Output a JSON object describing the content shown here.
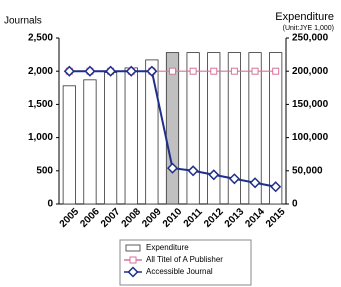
{
  "chart_data": {
    "type": "bar-line",
    "y_label": "Journals",
    "y2_label": "Expenditure",
    "y2_unit": "(Unit:JYE 1,000)",
    "categories": [
      "2005",
      "2006",
      "2007",
      "2008",
      "2009",
      "2010",
      "2011",
      "2012",
      "2013",
      "2014",
      "2015"
    ],
    "series": [
      {
        "name": "Expenditure",
        "type": "bar",
        "axis": "y2",
        "color": "#ffffff",
        "colors": [
          "#ffffff",
          "#ffffff",
          "#ffffff",
          "#ffffff",
          "#ffffff",
          "#c0c0c0",
          "#ffffff",
          "#ffffff",
          "#ffffff",
          "#ffffff",
          "#ffffff"
        ],
        "values": [
          178000,
          187000,
          198000,
          205000,
          217000,
          228000,
          228000,
          228000,
          228000,
          228000,
          228000
        ]
      },
      {
        "name": "All Titel of A Publisher",
        "type": "line",
        "marker": "square",
        "color": "#d9739a",
        "values": [
          2000,
          2000,
          2000,
          2000,
          2000,
          2000,
          2000,
          2000,
          2000,
          2000,
          2000
        ]
      },
      {
        "name": "Accessible Journal",
        "type": "line",
        "marker": "diamond",
        "color": "#1f2f8a",
        "values": [
          2000,
          2000,
          2000,
          2000,
          2000,
          540,
          500,
          440,
          380,
          320,
          260
        ]
      }
    ],
    "ylim": [
      0,
      2500
    ],
    "yticks": [
      0,
      500,
      {
        "value": 1000,
        "label": "1,000"
      },
      {
        "value": 1500,
        "label": "1,500"
      },
      {
        "value": 2000,
        "label": "2,000"
      },
      {
        "value": 2500,
        "label": "2,500"
      }
    ],
    "y2lim": [
      0,
      250000
    ],
    "y2ticks": [
      0,
      {
        "value": 50000,
        "label": "50,000"
      },
      {
        "value": 100000,
        "label": "100,000"
      },
      {
        "value": 150000,
        "label": "150,000"
      },
      {
        "value": 200000,
        "label": "200,000"
      },
      {
        "value": 250000,
        "label": "250,000"
      }
    ],
    "grid": false,
    "legend": "bottom"
  }
}
